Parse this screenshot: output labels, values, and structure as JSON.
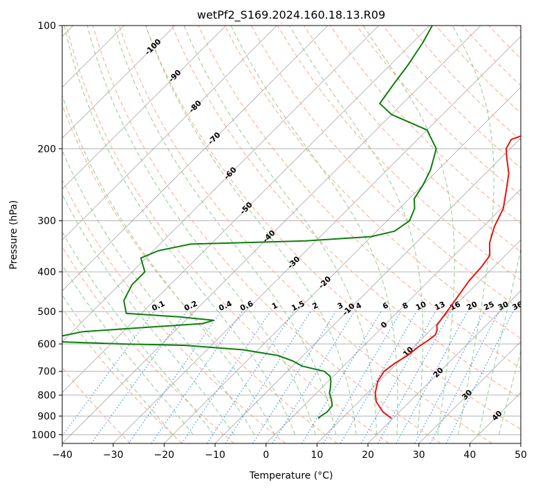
{
  "chart_data": {
    "type": "skew-t",
    "title": "wetPf2_S169.2024.160.18.13.R09",
    "xlabel": "Temperature (°C)",
    "ylabel": "Pressure (hPa)",
    "xlim": [
      -40,
      50
    ],
    "ylim": [
      1050,
      100
    ],
    "y_scale": "log",
    "x_ticks": [
      "−40",
      "−30",
      "−20",
      "−10",
      "0",
      "10",
      "20",
      "30",
      "40",
      "50"
    ],
    "y_ticks": [
      "100",
      "200",
      "300",
      "400",
      "500",
      "600",
      "700",
      "800",
      "900",
      "1000"
    ],
    "grid": true,
    "colors": {
      "temperature": "#e8120c",
      "dewpoint": "#0a7d0a",
      "isotherm": "#888888",
      "dry_adiabat": "#f7a88a",
      "moist_adiabat": "#8fc98f",
      "mixing_ratio": "#2b86e0",
      "isotherm_label": "#2a6fa8",
      "warm_label": "#d62b2b"
    },
    "series": [
      {
        "key": "temperature",
        "points": [
          {
            "p": 912,
            "t": 19.7
          },
          {
            "p": 880,
            "t": 16.8
          },
          {
            "p": 830,
            "t": 13.4
          },
          {
            "p": 790,
            "t": 11.5
          },
          {
            "p": 740,
            "t": 9.7
          },
          {
            "p": 700,
            "t": 9.0
          },
          {
            "p": 670,
            "t": 9.5
          },
          {
            "p": 640,
            "t": 10.5
          },
          {
            "p": 610,
            "t": 10.9
          },
          {
            "p": 590,
            "t": 11.5
          },
          {
            "p": 570,
            "t": 11.9
          },
          {
            "p": 555,
            "t": 11.3
          },
          {
            "p": 540,
            "t": 10.3
          },
          {
            "p": 500,
            "t": 9.6
          },
          {
            "p": 460,
            "t": 8.8
          },
          {
            "p": 420,
            "t": 7.9
          },
          {
            "p": 390,
            "t": 7.6
          },
          {
            "p": 365,
            "t": 7.0
          },
          {
            "p": 340,
            "t": 4.5
          },
          {
            "p": 310,
            "t": 2.2
          },
          {
            "p": 280,
            "t": 0.4
          },
          {
            "p": 250,
            "t": -2.9
          },
          {
            "p": 230,
            "t": -5.4
          },
          {
            "p": 212,
            "t": -8.6
          },
          {
            "p": 200,
            "t": -10.8
          },
          {
            "p": 190,
            "t": -11.6
          },
          {
            "p": 180,
            "t": -8.4
          },
          {
            "p": 170,
            "t": -3.2
          },
          {
            "p": 162,
            "t": 0.0
          },
          {
            "p": 150,
            "t": 0.6
          },
          {
            "p": 135,
            "t": 1.4
          },
          {
            "p": 120,
            "t": 3.5
          },
          {
            "p": 110,
            "t": 3.5
          },
          {
            "p": 100,
            "t": 3.8
          }
        ]
      },
      {
        "key": "dewpoint",
        "points": [
          {
            "p": 912,
            "t": 5.3
          },
          {
            "p": 900,
            "t": 5.4
          },
          {
            "p": 880,
            "t": 5.8
          },
          {
            "p": 850,
            "t": 5.6
          },
          {
            "p": 820,
            "t": 4.2
          },
          {
            "p": 790,
            "t": 2.5
          },
          {
            "p": 770,
            "t": 1.8
          },
          {
            "p": 740,
            "t": 0.5
          },
          {
            "p": 720,
            "t": -0.6
          },
          {
            "p": 700,
            "t": -2.7
          },
          {
            "p": 680,
            "t": -8.0
          },
          {
            "p": 660,
            "t": -11.0
          },
          {
            "p": 640,
            "t": -15.0
          },
          {
            "p": 620,
            "t": -23.0
          },
          {
            "p": 605,
            "t": -35.0
          },
          {
            "p": 600,
            "t": -48.0
          },
          {
            "p": 590,
            "t": -65.0
          },
          {
            "p": 560,
            "t": -58.0
          },
          {
            "p": 545,
            "t": -45.0
          },
          {
            "p": 535,
            "t": -36.0
          },
          {
            "p": 525,
            "t": -34.5
          },
          {
            "p": 515,
            "t": -42.0
          },
          {
            "p": 505,
            "t": -53.0
          },
          {
            "p": 470,
            "t": -56.0
          },
          {
            "p": 430,
            "t": -57.5
          },
          {
            "p": 400,
            "t": -57.5
          },
          {
            "p": 370,
            "t": -61.0
          },
          {
            "p": 355,
            "t": -59.0
          },
          {
            "p": 342,
            "t": -54.0
          },
          {
            "p": 336,
            "t": -32.0
          },
          {
            "p": 328,
            "t": -20.0
          },
          {
            "p": 318,
            "t": -16.5
          },
          {
            "p": 300,
            "t": -15.6
          },
          {
            "p": 280,
            "t": -17.0
          },
          {
            "p": 265,
            "t": -19.0
          },
          {
            "p": 245,
            "t": -20.0
          },
          {
            "p": 225,
            "t": -21.5
          },
          {
            "p": 200,
            "t": -24.5
          },
          {
            "p": 180,
            "t": -30.0
          },
          {
            "p": 165,
            "t": -40.0
          },
          {
            "p": 155,
            "t": -44.5
          },
          {
            "p": 140,
            "t": -45.5
          },
          {
            "p": 125,
            "t": -46.5
          },
          {
            "p": 110,
            "t": -48.0
          },
          {
            "p": 100,
            "t": -49.5
          }
        ]
      }
    ],
    "isotherm_labels": [
      "-100",
      "-90",
      "-80",
      "-70",
      "-60",
      "-50",
      "-40",
      "-30",
      "-20",
      "-10",
      "0",
      "10",
      "20",
      "30",
      "40"
    ],
    "mixing_ratio_labels": [
      "0.1",
      "0.2",
      "0.4",
      "0.6",
      "1",
      "1.5",
      "2",
      "3",
      "4",
      "6",
      "8",
      "10",
      "13",
      "16",
      "20",
      "25",
      "30",
      "36"
    ]
  }
}
